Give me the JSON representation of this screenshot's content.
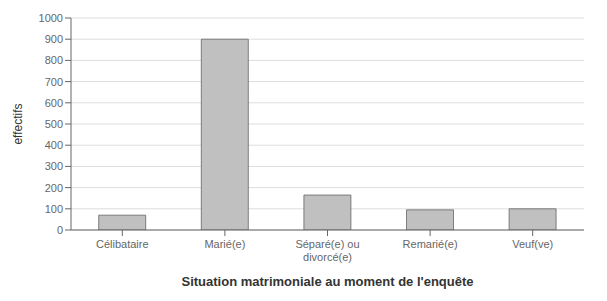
{
  "chart_data": {
    "type": "bar",
    "categories": [
      "Célibataire",
      "Marié(e)",
      "Séparé(e) ou\ndivorcé(e)",
      "Remarié(e)",
      "Veuf(ve)"
    ],
    "values": [
      70,
      900,
      165,
      95,
      100
    ],
    "color": "#c0c0c0",
    "ylabel": "effectifs",
    "xlabel": "Situation matrimoniale au moment de l'enquête",
    "ylim": [
      0,
      1000
    ],
    "yticks": [
      0,
      100,
      200,
      300,
      400,
      500,
      600,
      700,
      800,
      900,
      1000
    ],
    "grid": true
  }
}
